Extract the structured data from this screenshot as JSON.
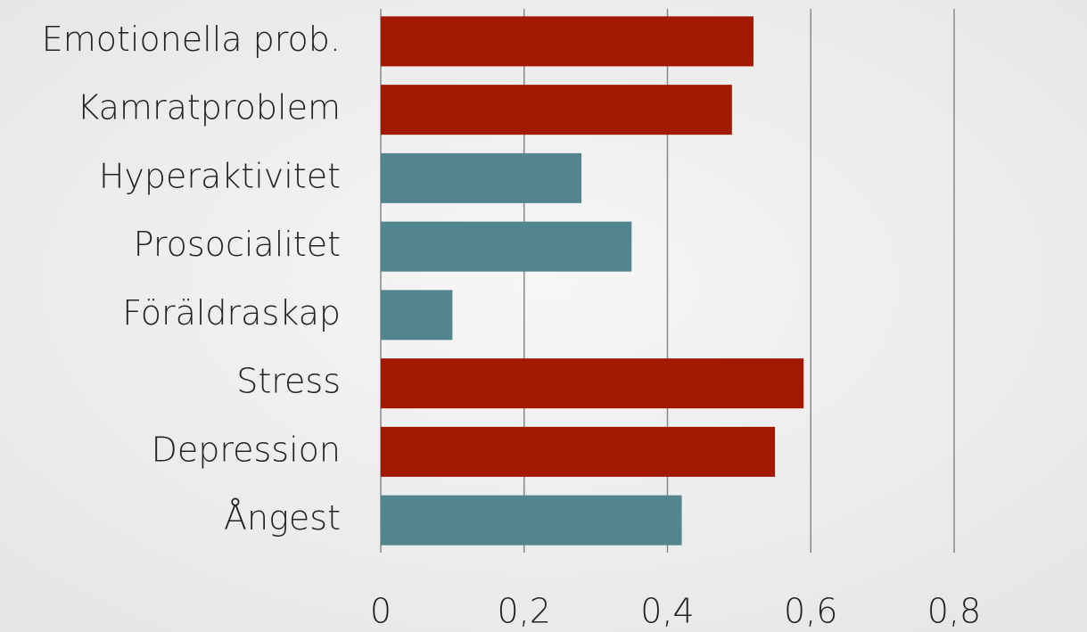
{
  "chart_data": {
    "type": "barh",
    "categories": [
      "Emotionella prob.",
      "Kamratproblem",
      "Hyperaktivitet",
      "Prosocialitet",
      "Föräldraskap",
      "Stress",
      "Depression",
      "Ångest"
    ],
    "values": [
      0.52,
      0.49,
      0.28,
      0.35,
      0.1,
      0.59,
      0.55,
      0.42
    ],
    "colors": [
      "#a31900",
      "#a31900",
      "#52858e",
      "#52858e",
      "#52858e",
      "#a31900",
      "#a31900",
      "#52858e"
    ],
    "xlim": [
      0,
      0.8
    ],
    "xticks": [
      0,
      {
        "value": 0.2,
        "label": "0,2"
      },
      {
        "value": 0.4,
        "label": "0,4"
      },
      {
        "value": 0.6,
        "label": "0,6"
      },
      {
        "value": 0.8,
        "label": "0,8"
      }
    ],
    "grid": true
  }
}
